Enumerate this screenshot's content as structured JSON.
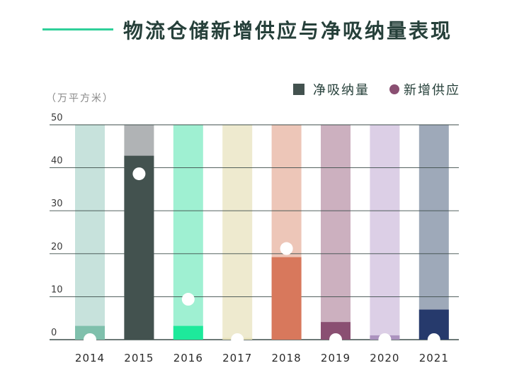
{
  "header": {
    "title": "物流仓储新增供应与净吸纳量表现",
    "accent_color": "#2fd09a"
  },
  "chart_data": {
    "type": "bar",
    "title": "物流仓储新增供应与净吸纳量表现",
    "unit_label": "（万平方米）",
    "xlabel": "",
    "ylabel": "",
    "ylim": [
      0,
      50
    ],
    "yticks": [
      0,
      10,
      20,
      30,
      40,
      50
    ],
    "grid": true,
    "legend_position": "top-right",
    "categories": [
      "2014",
      "2015",
      "2016",
      "2017",
      "2018",
      "2019",
      "2020",
      "2021"
    ],
    "series": [
      {
        "name": "净吸纳量",
        "type": "bar",
        "legend_color": "#43524f",
        "values": [
          3.2,
          42.8,
          3.2,
          0.4,
          19.2,
          4.1,
          1.0,
          7.0
        ]
      },
      {
        "name": "新增供应",
        "type": "point",
        "legend_color": "#8a4f72",
        "values": [
          0,
          38.6,
          9.4,
          0,
          21.2,
          0,
          0,
          0
        ]
      }
    ],
    "bar_colors": {
      "background": [
        "#c7e2dc",
        "#b0b3b5",
        "#9ff0d2",
        "#eeeacf",
        "#edc6b8",
        "#ccb0bf",
        "#dccfe6",
        "#9ea9b9"
      ],
      "foreground": [
        "#7fc0ac",
        "#43524f",
        "#1de99b",
        "#e6e1b9",
        "#d8785c",
        "#8a4f72",
        "#ac93bf",
        "#263a6c"
      ]
    }
  }
}
